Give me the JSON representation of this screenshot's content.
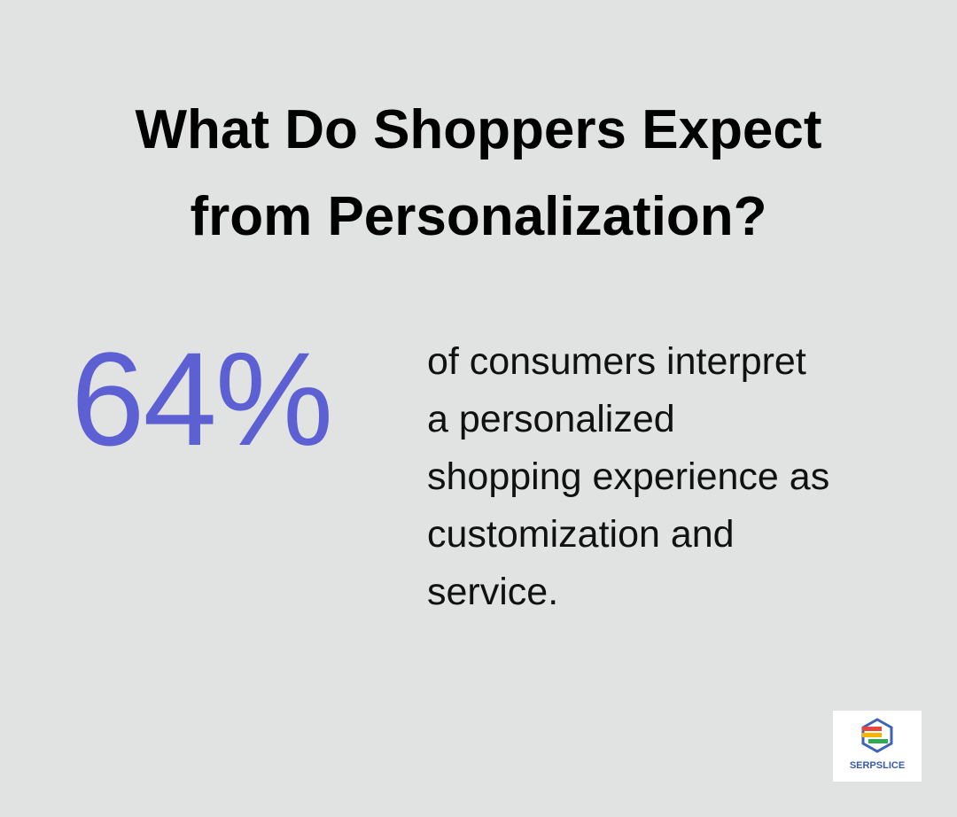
{
  "title": [
    "What Do Shoppers Expect",
    "from Personalization?"
  ],
  "stat": "64%",
  "description": [
    "of consumers interpret",
    "a personalized",
    "shopping experience as",
    "customization and",
    "service."
  ],
  "logo": "SERPSLICE"
}
